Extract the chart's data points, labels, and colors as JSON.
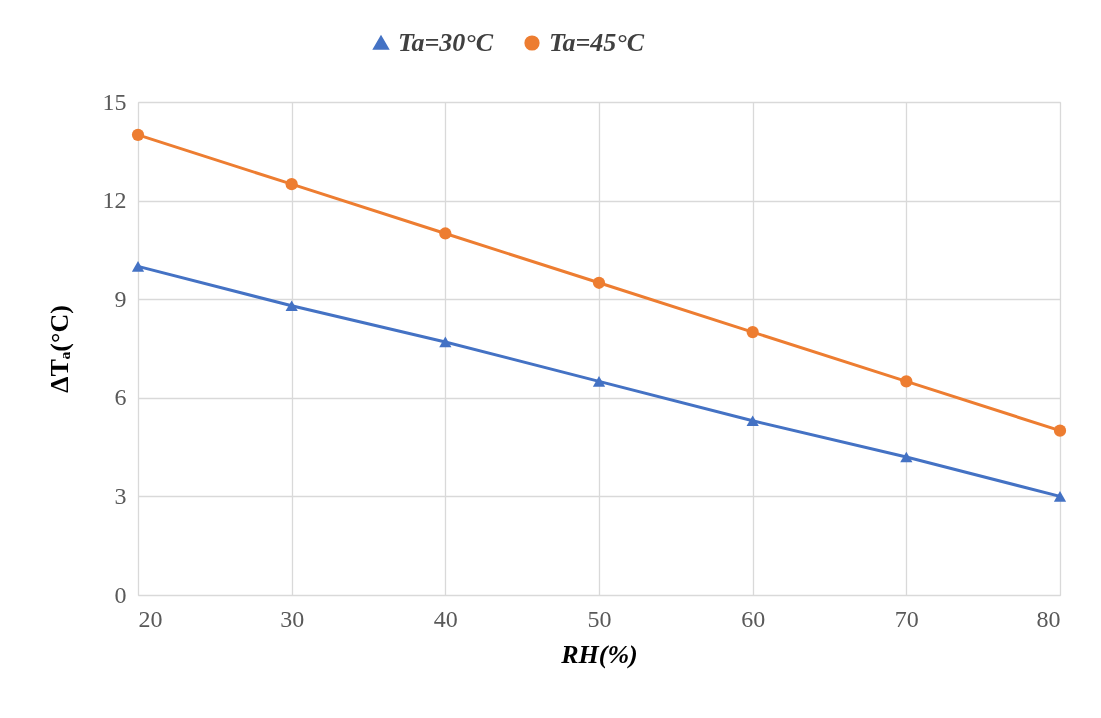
{
  "chart_data": {
    "type": "line",
    "xlabel": "RH(%)",
    "ylabel": "ΔTₐ(°C)",
    "x": [
      20,
      30,
      40,
      50,
      60,
      70,
      80
    ],
    "series": [
      {
        "name": "Ta=30°C",
        "color": "#4472c4",
        "marker": "triangle",
        "values": [
          10,
          8.8,
          7.7,
          6.5,
          5.3,
          4.2,
          3
        ]
      },
      {
        "name": "Ta=45°C",
        "color": "#ed7d31",
        "marker": "circle",
        "values": [
          14,
          12.5,
          11,
          9.5,
          8,
          6.5,
          5
        ]
      }
    ],
    "xlim": [
      20,
      80
    ],
    "xticks": [
      20,
      30,
      40,
      50,
      60,
      70,
      80
    ],
    "ylim": [
      0,
      15
    ],
    "yticks": [
      0,
      3,
      6,
      9,
      12,
      15
    ],
    "grid": true,
    "legend": "top",
    "line_style": "solid"
  }
}
